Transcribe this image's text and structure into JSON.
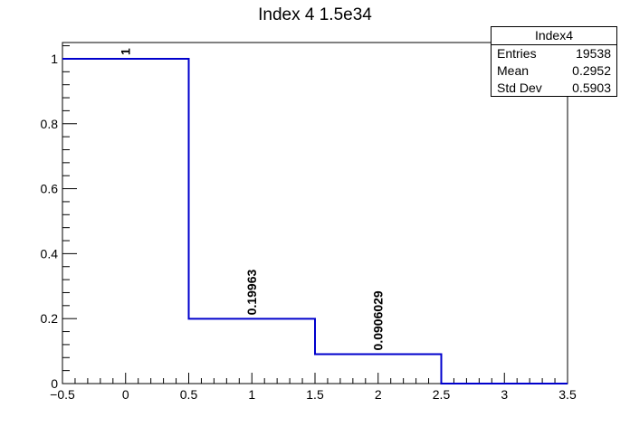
{
  "chart_data": {
    "type": "histogram",
    "title": "Index 4 1.5e34",
    "xlabel": "",
    "ylabel": "",
    "xlim": [
      -0.5,
      3.5
    ],
    "ylim": [
      0,
      1.05
    ],
    "x_ticks": [
      -0.5,
      0,
      0.5,
      1,
      1.5,
      2,
      2.5,
      3,
      3.5
    ],
    "x_tick_labels": [
      "−0.5",
      "0",
      "0.5",
      "1",
      "1.5",
      "2",
      "2.5",
      "3",
      "3.5"
    ],
    "y_ticks": [
      0,
      0.2,
      0.4,
      0.6,
      0.8,
      1
    ],
    "y_tick_labels": [
      "0",
      "0.2",
      "0.4",
      "0.6",
      "0.8",
      "1"
    ],
    "grid": false,
    "line_color": "#0000cc",
    "bins": [
      {
        "x_low": -0.5,
        "x_high": 0.5,
        "x_center": 0,
        "value": 1,
        "label": "1"
      },
      {
        "x_low": 0.5,
        "x_high": 1.5,
        "x_center": 1,
        "value": 0.19963,
        "label": "0.19963"
      },
      {
        "x_low": 1.5,
        "x_high": 2.5,
        "x_center": 2,
        "value": 0.0906029,
        "label": "0.0906029"
      },
      {
        "x_low": 2.5,
        "x_high": 3.5,
        "x_center": 3,
        "value": 0,
        "label": ""
      }
    ],
    "stats_box": {
      "name": "Index4",
      "rows": [
        {
          "label": "Entries",
          "value": "19538"
        },
        {
          "label": "Mean",
          "value": "0.2952"
        },
        {
          "label": "Std Dev",
          "value": "0.5903"
        }
      ]
    }
  }
}
